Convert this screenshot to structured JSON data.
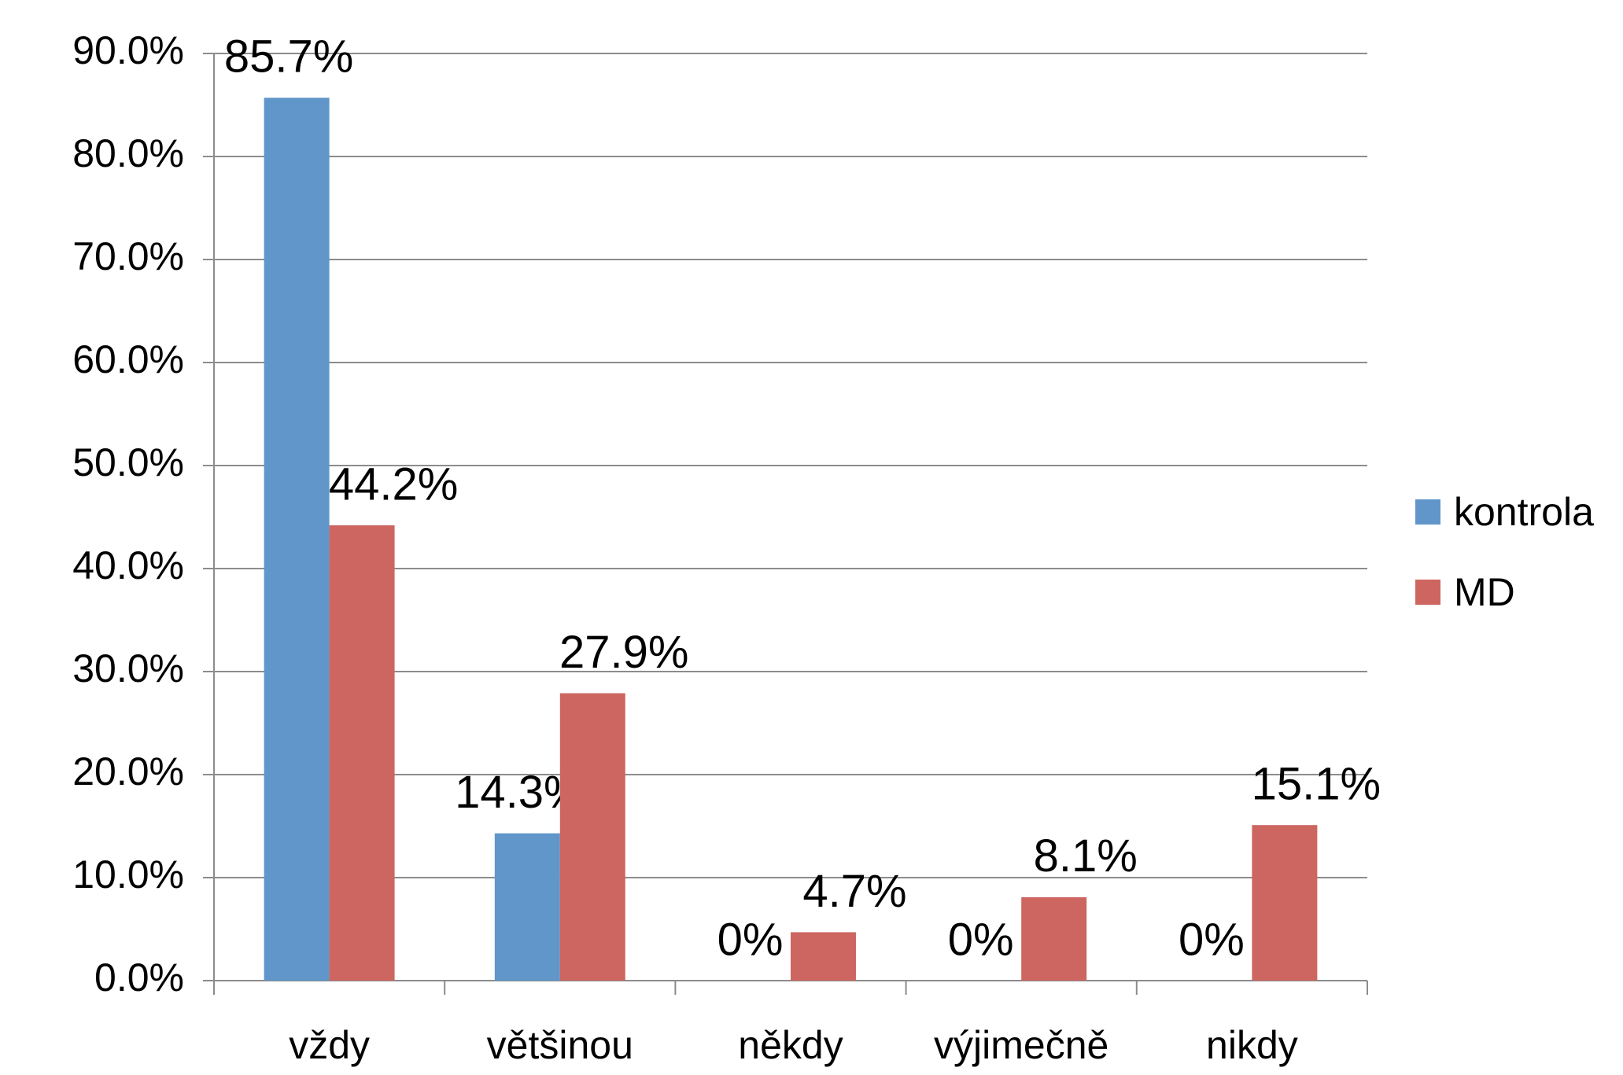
{
  "chart_data": {
    "type": "bar",
    "categories": [
      "vždy",
      "většinou",
      "někdy",
      "výjimečně",
      "nikdy"
    ],
    "series": [
      {
        "name": "kontrola",
        "color": "#6096c9",
        "values": [
          85.7,
          14.3,
          0,
          0,
          0
        ],
        "value_labels": [
          "85.7%",
          "14.3%",
          "0%",
          "0%",
          "0%"
        ]
      },
      {
        "name": "MD",
        "color": "#cd6660",
        "values": [
          44.2,
          27.9,
          4.7,
          8.1,
          15.1
        ],
        "value_labels": [
          "44.2%",
          "27.9%",
          "4.7%",
          "8.1%",
          "15.1%"
        ]
      }
    ],
    "ylim": [
      0,
      90
    ],
    "yticks": [
      {
        "value": 0,
        "label": "0.0%"
      },
      {
        "value": 10,
        "label": "10.0%"
      },
      {
        "value": 20,
        "label": "20.0%"
      },
      {
        "value": 30,
        "label": "30.0%"
      },
      {
        "value": 40,
        "label": "40.0%"
      },
      {
        "value": 50,
        "label": "50.0%"
      },
      {
        "value": 60,
        "label": "60.0%"
      },
      {
        "value": 70,
        "label": "70.0%"
      },
      {
        "value": 80,
        "label": "80.0%"
      },
      {
        "value": 90,
        "label": "90.0%"
      }
    ],
    "grid": true,
    "legend": "right"
  }
}
